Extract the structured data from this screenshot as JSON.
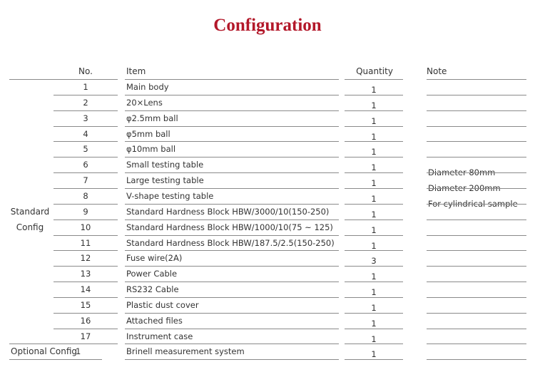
{
  "title": "Configuration",
  "headers": {
    "no": "No.",
    "item": "Item",
    "quantity": "Quantity",
    "note": "Note"
  },
  "groups": {
    "standard_line1": "Standard",
    "standard_line2": "Config",
    "optional": "Optional Config"
  },
  "rows": [
    {
      "no": "1",
      "item": "Main body",
      "qty": "1",
      "note": ""
    },
    {
      "no": "2",
      "item": "20×Lens",
      "qty": "1",
      "note": ""
    },
    {
      "no": "3",
      "item": "φ2.5mm ball",
      "qty": "1",
      "note": ""
    },
    {
      "no": "4",
      "item": "φ5mm ball",
      "qty": "1",
      "note": ""
    },
    {
      "no": "5",
      "item": "φ10mm ball",
      "qty": "1",
      "note": ""
    },
    {
      "no": "6",
      "item": "Small testing table",
      "qty": "1",
      "note": "Diameter 80mm"
    },
    {
      "no": "7",
      "item": "Large testing table",
      "qty": "1",
      "note": "Diameter 200mm"
    },
    {
      "no": "8",
      "item": "V-shape testing table",
      "qty": "1",
      "note": "For cylindrical sample"
    },
    {
      "no": "9",
      "item": "Standard Hardness Block  HBW/3000/10(150-250)",
      "qty": "1",
      "note": ""
    },
    {
      "no": "10",
      "item": "Standard Hardness Block  HBW/1000/10(75 ~ 125)",
      "qty": "1",
      "note": ""
    },
    {
      "no": "11",
      "item": "Standard Hardness Block  HBW/187.5/2.5(150-250)",
      "qty": "1",
      "note": ""
    },
    {
      "no": "12",
      "item": "Fuse wire(2A)",
      "qty": "3",
      "note": ""
    },
    {
      "no": "13",
      "item": "Power Cable",
      "qty": "1",
      "note": ""
    },
    {
      "no": "14",
      "item": "RS232 Cable",
      "qty": "1",
      "note": ""
    },
    {
      "no": "15",
      "item": "Plastic dust cover",
      "qty": "1",
      "note": ""
    },
    {
      "no": "16",
      "item": "Attached files",
      "qty": "1",
      "note": ""
    },
    {
      "no": "17",
      "item": "Instrument case",
      "qty": "1",
      "note": ""
    },
    {
      "no": "1",
      "item": "Brinell measurement system",
      "qty": "1",
      "note": ""
    }
  ]
}
